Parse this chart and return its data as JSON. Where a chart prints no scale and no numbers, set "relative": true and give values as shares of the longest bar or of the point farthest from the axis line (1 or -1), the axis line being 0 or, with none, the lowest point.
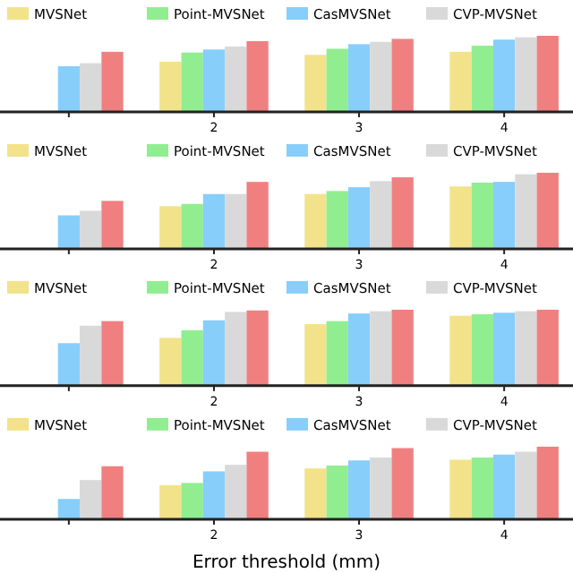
{
  "chart_data": [
    {
      "type": "bar",
      "relative": true,
      "categories": [
        null,
        "2",
        "3",
        "4"
      ],
      "legend": "top",
      "series": [
        {
          "name": "MVSNet",
          "color": "#f2e28a",
          "values": [
            null,
            0.66,
            0.75,
            0.79
          ]
        },
        {
          "name": "Point-MVSNet",
          "color": "#90ee90",
          "values": [
            null,
            0.78,
            0.83,
            0.87
          ]
        },
        {
          "name": "CasMVSNet",
          "color": "#87cefa",
          "values": [
            0.6,
            0.82,
            0.89,
            0.95
          ]
        },
        {
          "name": "CVP-MVSNet",
          "color": "#d9d9d9",
          "values": [
            0.64,
            0.86,
            0.92,
            0.98
          ]
        },
        {
          "color": "#f08080",
          "values": [
            0.79,
            0.93,
            0.96,
            1
          ]
        }
      ]
    },
    {
      "type": "bar",
      "relative": true,
      "categories": [
        null,
        "2",
        "3",
        "4"
      ],
      "legend": "top",
      "series": [
        {
          "name": "MVSNet",
          "color": "#f2e28a",
          "values": [
            null,
            0.56,
            0.72,
            0.82
          ]
        },
        {
          "name": "Point-MVSNet",
          "color": "#90ee90",
          "values": [
            null,
            0.59,
            0.76,
            0.87
          ]
        },
        {
          "name": "CasMVSNet",
          "color": "#87cefa",
          "values": [
            0.44,
            0.72,
            0.81,
            0.88
          ]
        },
        {
          "name": "CVP-MVSNet",
          "color": "#d9d9d9",
          "values": [
            0.5,
            0.72,
            0.89,
            0.98
          ]
        },
        {
          "color": "#f08080",
          "values": [
            0.63,
            0.88,
            0.94,
            1
          ]
        }
      ]
    },
    {
      "type": "bar",
      "relative": true,
      "categories": [
        null,
        "2",
        "3",
        "4"
      ],
      "legend": "top",
      "series": [
        {
          "name": "MVSNet",
          "color": "#f2e28a",
          "values": [
            null,
            0.63,
            0.81,
            0.92
          ]
        },
        {
          "name": "Point-MVSNet",
          "color": "#90ee90",
          "values": [
            null,
            0.73,
            0.85,
            0.94
          ]
        },
        {
          "name": "CasMVSNet",
          "color": "#87cefa",
          "values": [
            0.56,
            0.86,
            0.95,
            0.96
          ]
        },
        {
          "name": "CVP-MVSNet",
          "color": "#d9d9d9",
          "values": [
            0.79,
            0.97,
            0.98,
            0.98
          ]
        },
        {
          "color": "#f08080",
          "values": [
            0.85,
            0.99,
            1,
            1
          ]
        }
      ]
    },
    {
      "type": "bar",
      "relative": true,
      "categories": [
        null,
        "2",
        "3",
        "4"
      ],
      "legend": "top",
      "xlabel": "Error threshold (mm)",
      "series": [
        {
          "name": "MVSNet",
          "color": "#f2e28a",
          "values": [
            null,
            0.47,
            0.7,
            0.82
          ]
        },
        {
          "name": "Point-MVSNet",
          "color": "#90ee90",
          "values": [
            null,
            0.5,
            0.74,
            0.85
          ]
        },
        {
          "name": "CasMVSNet",
          "color": "#87cefa",
          "values": [
            0.28,
            0.66,
            0.81,
            0.89
          ]
        },
        {
          "name": "CVP-MVSNet",
          "color": "#d9d9d9",
          "values": [
            0.54,
            0.75,
            0.85,
            0.93
          ]
        },
        {
          "color": "#f08080",
          "values": [
            0.73,
            0.93,
            0.98,
            1
          ]
        }
      ]
    }
  ]
}
